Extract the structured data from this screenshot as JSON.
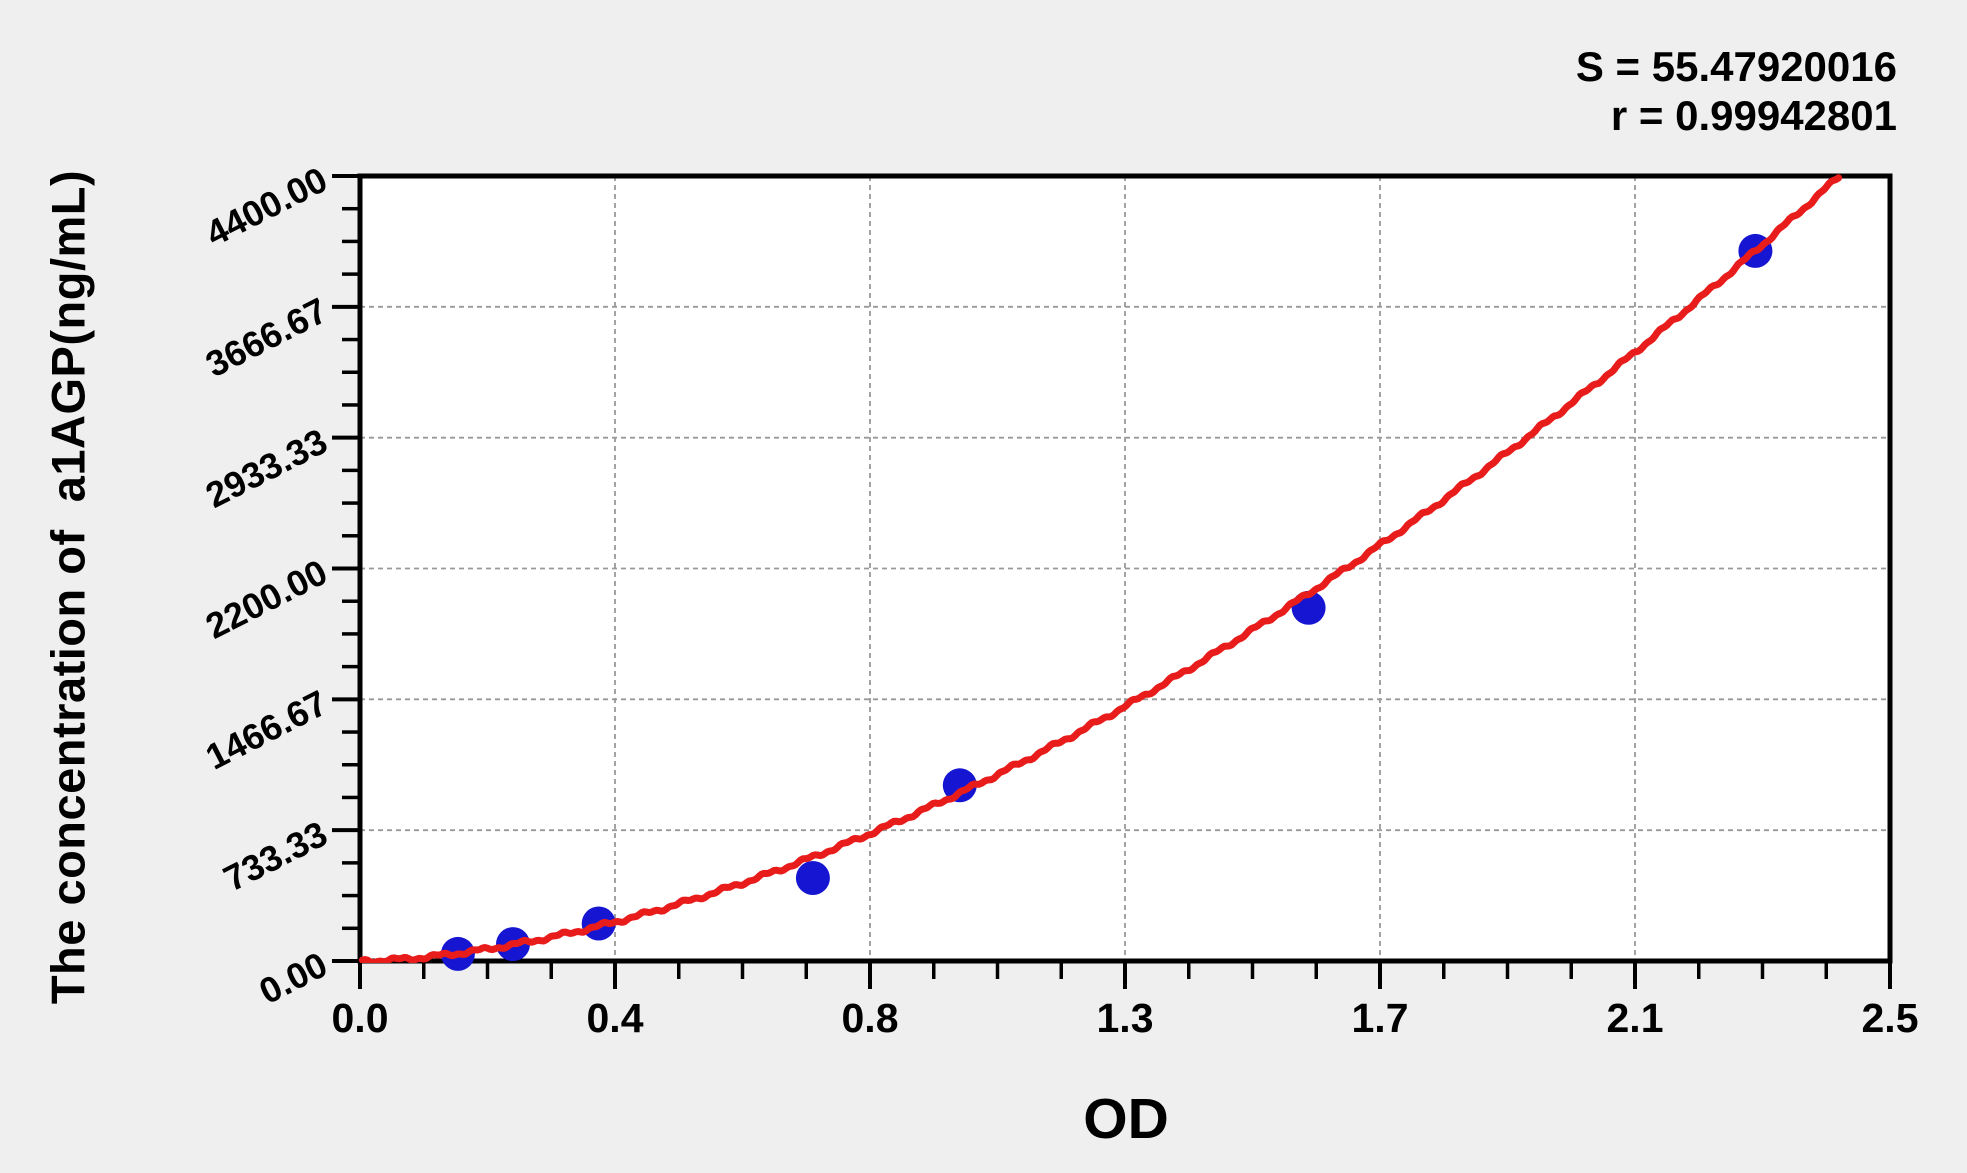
{
  "page": {
    "background_color": "#efefef"
  },
  "stats": {
    "s_label": "S = 55.47920016",
    "r_label": "r = 0.99942801"
  },
  "chart_data": {
    "type": "scatter",
    "title": "",
    "xlabel": "OD",
    "ylabel": "The concentration of  a1AGP(ng/mL)",
    "xlim": [
      0,
      2.5
    ],
    "ylim": [
      0,
      4400
    ],
    "x_tick_labels": [
      "0.0",
      "0.4",
      "0.8",
      "1.3",
      "1.7",
      "2.1",
      "2.5"
    ],
    "y_tick_labels": [
      "0.00",
      "733.33",
      "1466.67",
      "2200.00",
      "2933.33",
      "3666.67",
      "4400.00"
    ],
    "minor_ticks_per_interval": 3,
    "grid": {
      "show": true,
      "style": "dashed",
      "at": "major-ticks"
    },
    "legend": {
      "show": false
    },
    "series": [
      {
        "name": "standard-points",
        "type": "scatter",
        "points_od": [
          0.16,
          0.25,
          0.39,
          0.74,
          0.98,
          1.55,
          2.28
        ],
        "points_conc": [
          40,
          95,
          210,
          465,
          985,
          1980,
          3980
        ]
      },
      {
        "name": "fitted-curve",
        "type": "line",
        "fit_model": "power",
        "fit_k": 975,
        "fit_exponent": 1.707,
        "od_range": [
          0.004,
          2.417
        ],
        "S": 55.47920016,
        "r": 0.99942801
      }
    ],
    "colors": {
      "point": "#1616d2",
      "curve": "#e91c1c",
      "grid": "#999999",
      "axis": "#000000",
      "plot_background": "#ffffff",
      "text": "#000000"
    }
  }
}
